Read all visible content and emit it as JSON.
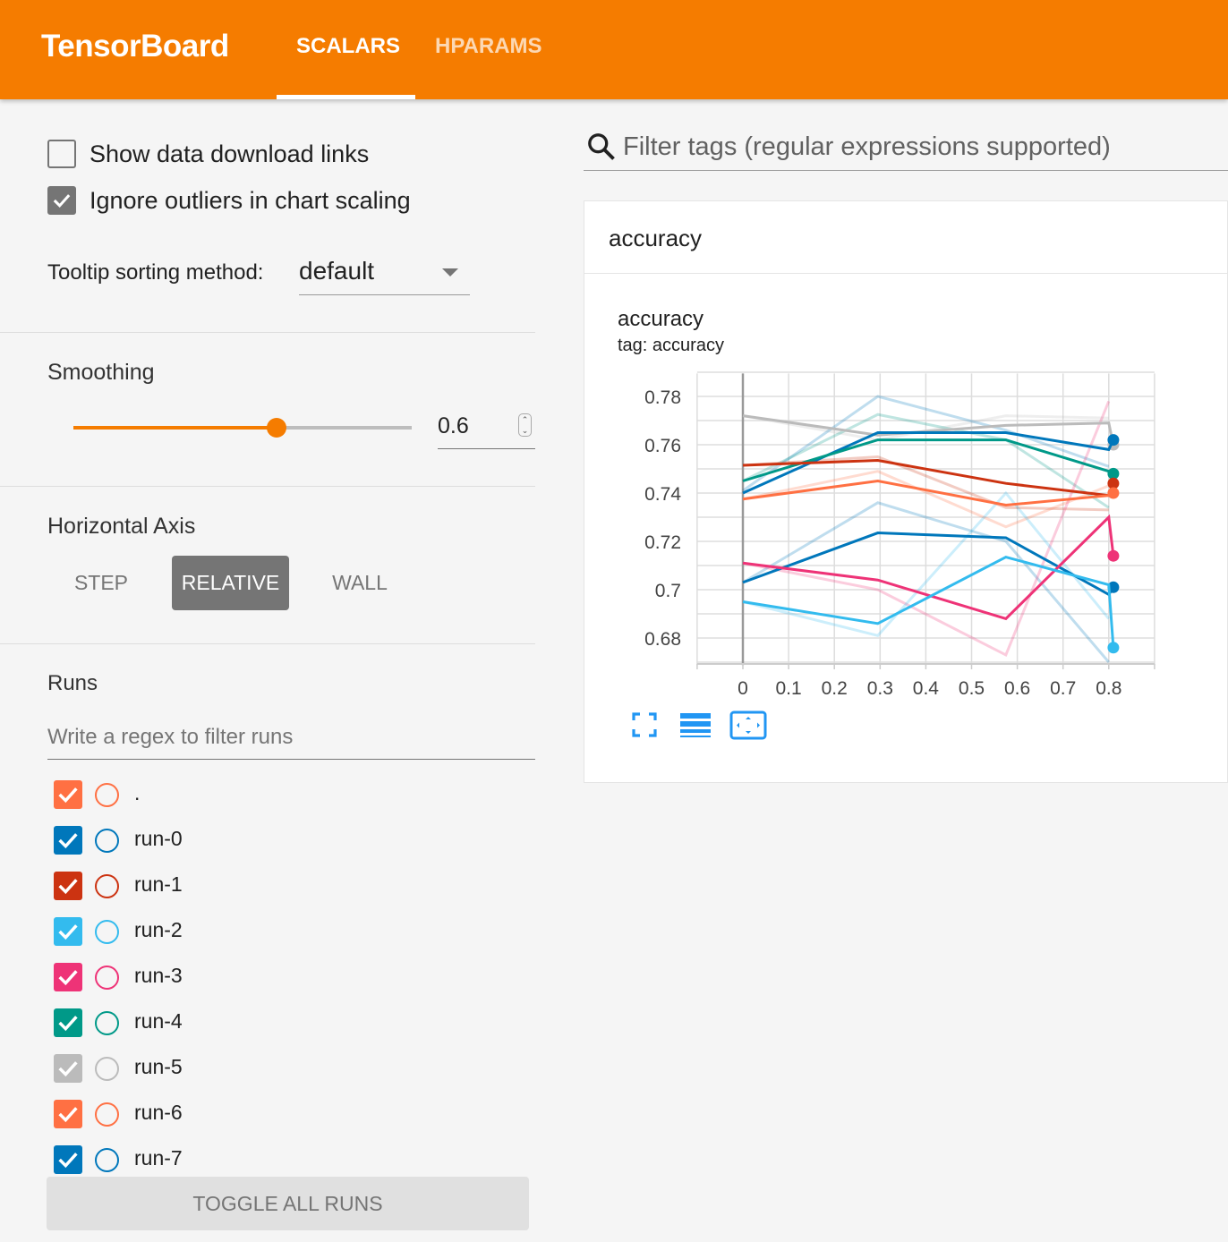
{
  "header": {
    "brand": "TensorBoard",
    "tabs": [
      {
        "label": "SCALARS",
        "active": true
      },
      {
        "label": "HPARAMS",
        "active": false
      }
    ]
  },
  "sidebar": {
    "show_download_links": {
      "label": "Show data download links",
      "checked": false
    },
    "ignore_outliers": {
      "label": "Ignore outliers in chart scaling",
      "checked": true
    },
    "tooltip_sorting": {
      "label": "Tooltip sorting method:",
      "value": "default"
    },
    "smoothing": {
      "title": "Smoothing",
      "value": "0.6",
      "fraction": 0.6
    },
    "horizontal_axis": {
      "title": "Horizontal Axis",
      "options": [
        "STEP",
        "RELATIVE",
        "WALL"
      ],
      "selected": "RELATIVE"
    },
    "runs": {
      "title": "Runs",
      "filter_placeholder": "Write a regex to filter runs",
      "toggle_all": "TOGGLE ALL RUNS",
      "items": [
        {
          "name": ".",
          "color": "#ff7043",
          "checked": true
        },
        {
          "name": "run-0",
          "color": "#0077bb",
          "checked": true
        },
        {
          "name": "run-1",
          "color": "#cc3311",
          "checked": true
        },
        {
          "name": "run-2",
          "color": "#33bbee",
          "checked": true
        },
        {
          "name": "run-3",
          "color": "#ee3377",
          "checked": true
        },
        {
          "name": "run-4",
          "color": "#009988",
          "checked": true
        },
        {
          "name": "run-5",
          "color": "#bbbbbb",
          "checked": true
        },
        {
          "name": "run-6",
          "color": "#ff7043",
          "checked": true
        },
        {
          "name": "run-7",
          "color": "#0077bb",
          "checked": true
        }
      ]
    }
  },
  "main": {
    "filter_placeholder": "Filter tags (regular expressions supported)",
    "card_title": "accuracy",
    "chart_title": "accuracy",
    "chart_tag": "tag: accuracy"
  },
  "chart_data": {
    "type": "line",
    "xlim": [
      -0.1,
      0.9
    ],
    "ylim": [
      0.67,
      0.79
    ],
    "x_ticks": [
      "0",
      "0.1",
      "0.2",
      "0.3",
      "0.4",
      "0.5",
      "0.6",
      "0.7",
      "0.8"
    ],
    "y_ticks": [
      "0.78",
      "0.76",
      "0.74",
      "0.72",
      "0.7",
      "0.68"
    ],
    "grid": true,
    "x": [
      0,
      0.295,
      0.575,
      0.8
    ],
    "series": [
      {
        "run": "run-5",
        "color": "#bbbbbb",
        "smoothed": [
          0.772,
          0.764,
          0.768,
          0.769
        ],
        "raw": [
          0.772,
          0.762,
          0.772,
          0.771
        ],
        "last": 0.76
      },
      {
        "run": "run-0",
        "color": "#0077bb",
        "smoothed": [
          0.74,
          0.765,
          0.765,
          0.758
        ],
        "raw": [
          0.741,
          0.78,
          0.766,
          0.751
        ],
        "last": 0.762
      },
      {
        "run": "run-4",
        "color": "#009988",
        "smoothed": [
          0.745,
          0.762,
          0.762,
          0.749
        ],
        "raw": [
          0.745,
          0.7725,
          0.762,
          0.734
        ],
        "last": 0.748
      },
      {
        "run": "run-1",
        "color": "#cc3311",
        "smoothed": [
          0.7515,
          0.7535,
          0.744,
          0.739
        ],
        "raw": [
          0.7515,
          0.755,
          0.734,
          0.733
        ],
        "last": 0.744
      },
      {
        "run": ".",
        "color": "#ff7043",
        "smoothed": [
          0.7375,
          0.745,
          0.735,
          0.739
        ],
        "raw": [
          0.7375,
          0.749,
          0.726,
          0.743
        ],
        "last": 0.74
      },
      {
        "run": "run-7",
        "color": "#0077bb",
        "smoothed": [
          0.703,
          0.7235,
          0.7215,
          0.698
        ],
        "raw": [
          0.703,
          0.736,
          0.72,
          0.67
        ],
        "last": 0.701
      },
      {
        "run": "run-3",
        "color": "#ee3377",
        "smoothed": [
          0.711,
          0.704,
          0.688,
          0.73
        ],
        "raw": [
          0.711,
          0.7,
          0.673,
          0.778
        ],
        "last": 0.714
      },
      {
        "run": "run-2",
        "color": "#33bbee",
        "smoothed": [
          0.695,
          0.686,
          0.7135,
          0.702
        ],
        "raw": [
          0.695,
          0.681,
          0.74,
          0.688
        ],
        "last": 0.676
      }
    ]
  },
  "icons": {
    "accent": "#2196f3",
    "toolbar": [
      "fullscreen-icon",
      "log-scale-icon",
      "fit-domain-icon"
    ]
  }
}
